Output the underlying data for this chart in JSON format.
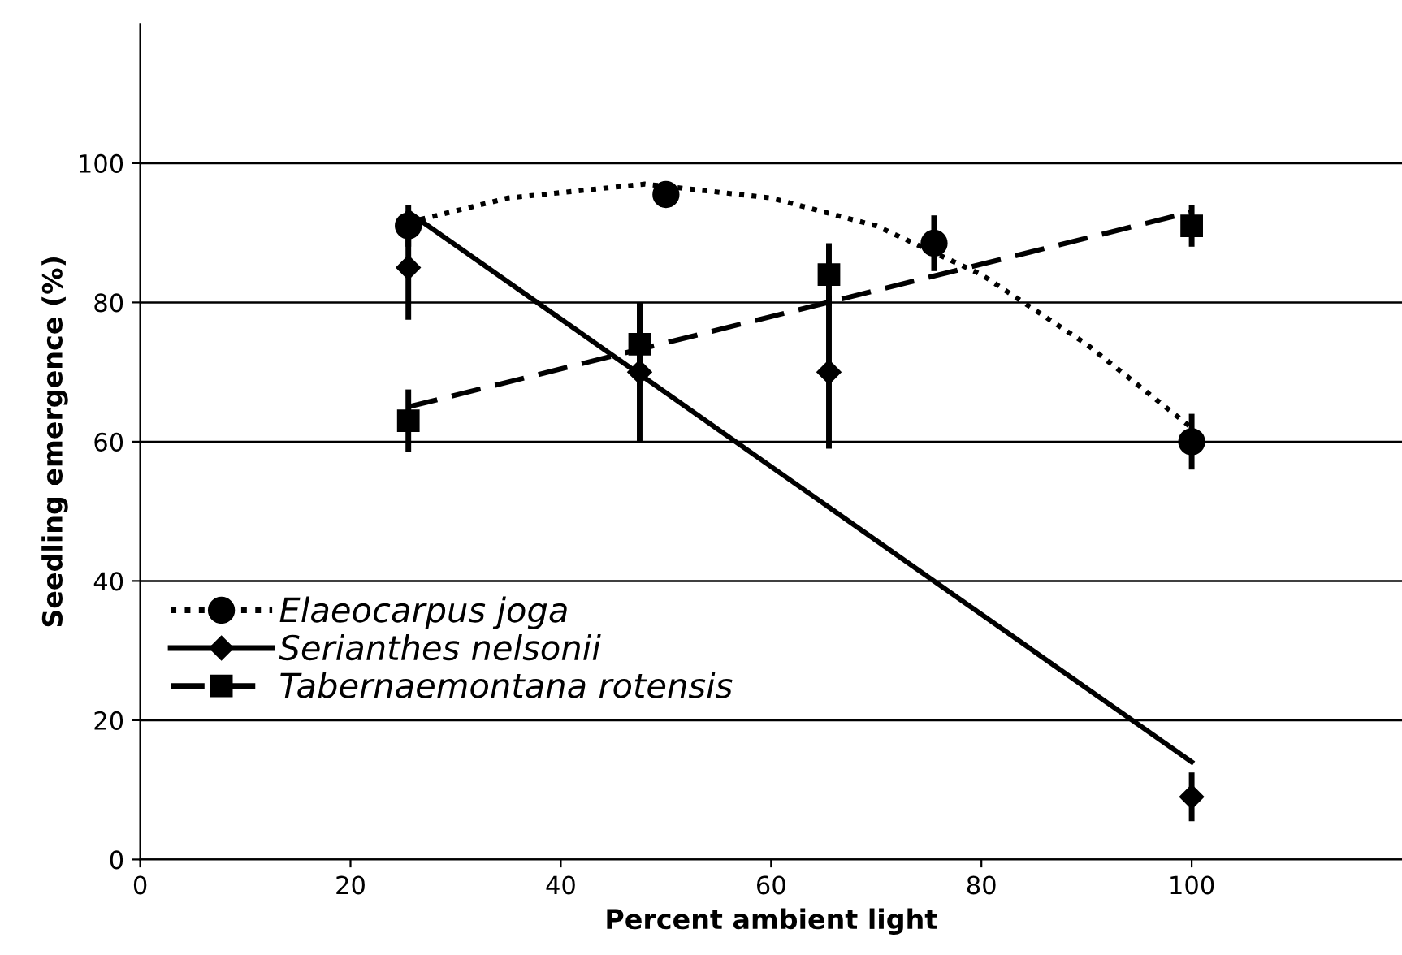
{
  "chart_data": {
    "type": "scatter",
    "xlabel": "Percent ambient light",
    "ylabel": "Seedling emergence (%)",
    "xlim": [
      0,
      120
    ],
    "ylim": [
      0,
      120
    ],
    "xticks": [
      0,
      20,
      40,
      60,
      80,
      100
    ],
    "yticks": [
      0,
      20,
      40,
      60,
      80,
      100
    ],
    "grid": "y",
    "legend": "left",
    "series": [
      {
        "name": "Elaeocarpus joga",
        "marker": "circle",
        "color": "#000000",
        "x": [
          25.5,
          50,
          75.5,
          100
        ],
        "values": [
          91,
          95.5,
          88.5,
          60
        ],
        "errors": [
          3,
          1.5,
          4,
          4
        ]
      },
      {
        "name": "Serianthes nelsonii",
        "marker": "diamond",
        "color": "#000000",
        "x": [
          25.5,
          47.5,
          65.5,
          100
        ],
        "values": [
          85,
          70,
          70,
          9
        ],
        "errors": [
          7.5,
          10,
          11,
          3.5
        ]
      },
      {
        "name": "Tabernaemontana rotensis",
        "marker": "square",
        "color": "#000000",
        "x": [
          25.5,
          47.5,
          65.5,
          100
        ],
        "values": [
          63,
          74,
          84,
          91
        ],
        "errors": [
          4.5,
          6,
          4.5,
          3
        ]
      },
      {
        "type": "line",
        "line_style": "dotted",
        "color": "#000000",
        "x": [
          25.5,
          35,
          48,
          60,
          70,
          80,
          90,
          100
        ],
        "values": [
          91.5,
          95,
          97,
          95,
          91,
          84,
          74,
          62
        ]
      },
      {
        "type": "line",
        "line_style": "solid",
        "color": "#000000",
        "x": [
          25.5,
          100
        ],
        "values": [
          93,
          14
        ]
      },
      {
        "type": "line",
        "line_style": "dashed",
        "color": "#000000",
        "x": [
          25.5,
          100
        ],
        "values": [
          65,
          93
        ]
      }
    ]
  }
}
